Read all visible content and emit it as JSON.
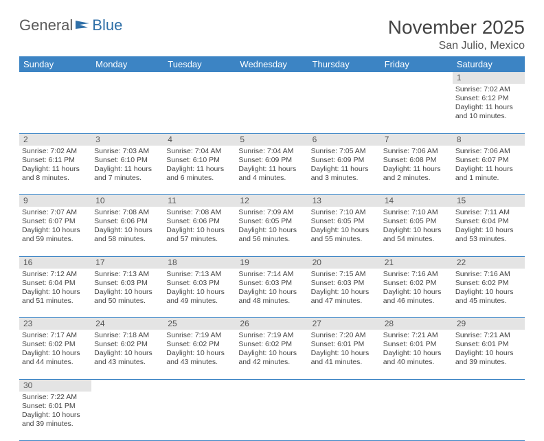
{
  "logo": {
    "text1": "General",
    "text2": "Blue"
  },
  "title": "November 2025",
  "location": "San Julio, Mexico",
  "colors": {
    "header_bg": "#3c84c4",
    "header_text": "#ffffff",
    "daynum_bg": "#e4e4e4",
    "border": "#3c84c4",
    "body_text": "#444444"
  },
  "day_headers": [
    "Sunday",
    "Monday",
    "Tuesday",
    "Wednesday",
    "Thursday",
    "Friday",
    "Saturday"
  ],
  "weeks": [
    [
      null,
      null,
      null,
      null,
      null,
      null,
      {
        "n": "1",
        "sr": "Sunrise: 7:02 AM",
        "ss": "Sunset: 6:12 PM",
        "dl1": "Daylight: 11 hours",
        "dl2": "and 10 minutes."
      }
    ],
    [
      {
        "n": "2",
        "sr": "Sunrise: 7:02 AM",
        "ss": "Sunset: 6:11 PM",
        "dl1": "Daylight: 11 hours",
        "dl2": "and 8 minutes."
      },
      {
        "n": "3",
        "sr": "Sunrise: 7:03 AM",
        "ss": "Sunset: 6:10 PM",
        "dl1": "Daylight: 11 hours",
        "dl2": "and 7 minutes."
      },
      {
        "n": "4",
        "sr": "Sunrise: 7:04 AM",
        "ss": "Sunset: 6:10 PM",
        "dl1": "Daylight: 11 hours",
        "dl2": "and 6 minutes."
      },
      {
        "n": "5",
        "sr": "Sunrise: 7:04 AM",
        "ss": "Sunset: 6:09 PM",
        "dl1": "Daylight: 11 hours",
        "dl2": "and 4 minutes."
      },
      {
        "n": "6",
        "sr": "Sunrise: 7:05 AM",
        "ss": "Sunset: 6:09 PM",
        "dl1": "Daylight: 11 hours",
        "dl2": "and 3 minutes."
      },
      {
        "n": "7",
        "sr": "Sunrise: 7:06 AM",
        "ss": "Sunset: 6:08 PM",
        "dl1": "Daylight: 11 hours",
        "dl2": "and 2 minutes."
      },
      {
        "n": "8",
        "sr": "Sunrise: 7:06 AM",
        "ss": "Sunset: 6:07 PM",
        "dl1": "Daylight: 11 hours",
        "dl2": "and 1 minute."
      }
    ],
    [
      {
        "n": "9",
        "sr": "Sunrise: 7:07 AM",
        "ss": "Sunset: 6:07 PM",
        "dl1": "Daylight: 10 hours",
        "dl2": "and 59 minutes."
      },
      {
        "n": "10",
        "sr": "Sunrise: 7:08 AM",
        "ss": "Sunset: 6:06 PM",
        "dl1": "Daylight: 10 hours",
        "dl2": "and 58 minutes."
      },
      {
        "n": "11",
        "sr": "Sunrise: 7:08 AM",
        "ss": "Sunset: 6:06 PM",
        "dl1": "Daylight: 10 hours",
        "dl2": "and 57 minutes."
      },
      {
        "n": "12",
        "sr": "Sunrise: 7:09 AM",
        "ss": "Sunset: 6:05 PM",
        "dl1": "Daylight: 10 hours",
        "dl2": "and 56 minutes."
      },
      {
        "n": "13",
        "sr": "Sunrise: 7:10 AM",
        "ss": "Sunset: 6:05 PM",
        "dl1": "Daylight: 10 hours",
        "dl2": "and 55 minutes."
      },
      {
        "n": "14",
        "sr": "Sunrise: 7:10 AM",
        "ss": "Sunset: 6:05 PM",
        "dl1": "Daylight: 10 hours",
        "dl2": "and 54 minutes."
      },
      {
        "n": "15",
        "sr": "Sunrise: 7:11 AM",
        "ss": "Sunset: 6:04 PM",
        "dl1": "Daylight: 10 hours",
        "dl2": "and 53 minutes."
      }
    ],
    [
      {
        "n": "16",
        "sr": "Sunrise: 7:12 AM",
        "ss": "Sunset: 6:04 PM",
        "dl1": "Daylight: 10 hours",
        "dl2": "and 51 minutes."
      },
      {
        "n": "17",
        "sr": "Sunrise: 7:13 AM",
        "ss": "Sunset: 6:03 PM",
        "dl1": "Daylight: 10 hours",
        "dl2": "and 50 minutes."
      },
      {
        "n": "18",
        "sr": "Sunrise: 7:13 AM",
        "ss": "Sunset: 6:03 PM",
        "dl1": "Daylight: 10 hours",
        "dl2": "and 49 minutes."
      },
      {
        "n": "19",
        "sr": "Sunrise: 7:14 AM",
        "ss": "Sunset: 6:03 PM",
        "dl1": "Daylight: 10 hours",
        "dl2": "and 48 minutes."
      },
      {
        "n": "20",
        "sr": "Sunrise: 7:15 AM",
        "ss": "Sunset: 6:03 PM",
        "dl1": "Daylight: 10 hours",
        "dl2": "and 47 minutes."
      },
      {
        "n": "21",
        "sr": "Sunrise: 7:16 AM",
        "ss": "Sunset: 6:02 PM",
        "dl1": "Daylight: 10 hours",
        "dl2": "and 46 minutes."
      },
      {
        "n": "22",
        "sr": "Sunrise: 7:16 AM",
        "ss": "Sunset: 6:02 PM",
        "dl1": "Daylight: 10 hours",
        "dl2": "and 45 minutes."
      }
    ],
    [
      {
        "n": "23",
        "sr": "Sunrise: 7:17 AM",
        "ss": "Sunset: 6:02 PM",
        "dl1": "Daylight: 10 hours",
        "dl2": "and 44 minutes."
      },
      {
        "n": "24",
        "sr": "Sunrise: 7:18 AM",
        "ss": "Sunset: 6:02 PM",
        "dl1": "Daylight: 10 hours",
        "dl2": "and 43 minutes."
      },
      {
        "n": "25",
        "sr": "Sunrise: 7:19 AM",
        "ss": "Sunset: 6:02 PM",
        "dl1": "Daylight: 10 hours",
        "dl2": "and 43 minutes."
      },
      {
        "n": "26",
        "sr": "Sunrise: 7:19 AM",
        "ss": "Sunset: 6:02 PM",
        "dl1": "Daylight: 10 hours",
        "dl2": "and 42 minutes."
      },
      {
        "n": "27",
        "sr": "Sunrise: 7:20 AM",
        "ss": "Sunset: 6:01 PM",
        "dl1": "Daylight: 10 hours",
        "dl2": "and 41 minutes."
      },
      {
        "n": "28",
        "sr": "Sunrise: 7:21 AM",
        "ss": "Sunset: 6:01 PM",
        "dl1": "Daylight: 10 hours",
        "dl2": "and 40 minutes."
      },
      {
        "n": "29",
        "sr": "Sunrise: 7:21 AM",
        "ss": "Sunset: 6:01 PM",
        "dl1": "Daylight: 10 hours",
        "dl2": "and 39 minutes."
      }
    ],
    [
      {
        "n": "30",
        "sr": "Sunrise: 7:22 AM",
        "ss": "Sunset: 6:01 PM",
        "dl1": "Daylight: 10 hours",
        "dl2": "and 39 minutes."
      },
      null,
      null,
      null,
      null,
      null,
      null
    ]
  ]
}
